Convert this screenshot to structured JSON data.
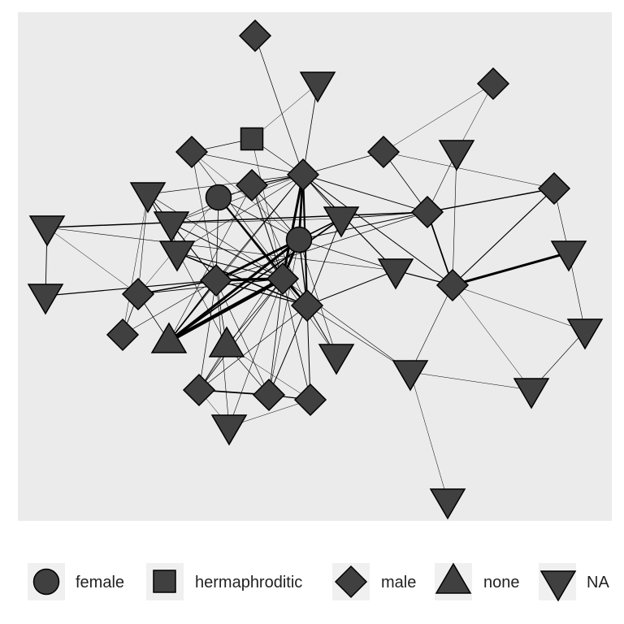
{
  "colors": {
    "panel_background": "#ebebeb",
    "node_fill": "#404040",
    "node_stroke": "#000000",
    "edge": "#000000",
    "legend_key_background": "#f0f0f0"
  },
  "legend": {
    "items": [
      {
        "label": "female",
        "shape": "circle"
      },
      {
        "label": "hermaphroditic",
        "shape": "square"
      },
      {
        "label": "male",
        "shape": "diamond"
      },
      {
        "label": "none",
        "shape": "triangle-up"
      },
      {
        "label": "NA",
        "shape": "triangle-down"
      }
    ]
  }
}
